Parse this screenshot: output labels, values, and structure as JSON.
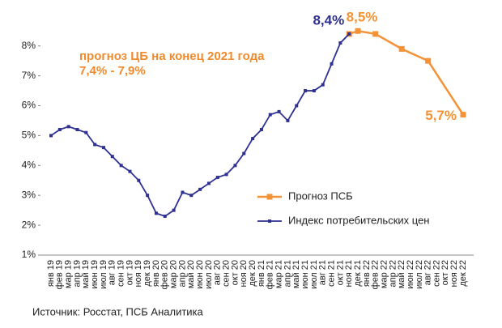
{
  "chart_data": {
    "type": "line",
    "categories": [
      "янв 19",
      "фев 19",
      "мар 19",
      "апр 19",
      "май 19",
      "июн 19",
      "июл 19",
      "авг 19",
      "сен 19",
      "окт 19",
      "ноя 19",
      "дек 19",
      "янв 20",
      "фев 20",
      "мар 20",
      "апр 20",
      "май 20",
      "июн 20",
      "июл 20",
      "авг 20",
      "сен 20",
      "окт 20",
      "ноя 20",
      "дек 20",
      "янв 21",
      "фев 21",
      "мар 21",
      "апр 21",
      "май 21",
      "июн 21",
      "июл 21",
      "авг 21",
      "сен 21",
      "окт 21",
      "ноя 21",
      "дек 21",
      "янв 22",
      "фев 22",
      "мар 22",
      "апр 22",
      "май 22",
      "июн 22",
      "июл 22",
      "авг 22",
      "сен 22",
      "окт 22",
      "ноя 22",
      "дек 22"
    ],
    "series": [
      {
        "name": "Прогноз ПСБ",
        "color": "#f39237",
        "marker": "square",
        "values": [
          null,
          null,
          null,
          null,
          null,
          null,
          null,
          null,
          null,
          null,
          null,
          null,
          null,
          null,
          null,
          null,
          null,
          null,
          null,
          null,
          null,
          null,
          null,
          null,
          null,
          null,
          null,
          null,
          null,
          null,
          null,
          null,
          null,
          null,
          8.4,
          8.5,
          null,
          8.4,
          null,
          null,
          7.9,
          null,
          null,
          7.5,
          null,
          null,
          null,
          5.7
        ],
        "value_labels": [
          null,
          null,
          null,
          null,
          null,
          null,
          null,
          null,
          null,
          null,
          null,
          null,
          null,
          null,
          null,
          null,
          null,
          null,
          null,
          null,
          null,
          null,
          null,
          null,
          null,
          null,
          null,
          null,
          null,
          null,
          null,
          null,
          null,
          null,
          null,
          "8,5%",
          null,
          null,
          null,
          null,
          null,
          null,
          null,
          null,
          null,
          null,
          null,
          "5,7%"
        ]
      },
      {
        "name": "Индекс потребительских цен",
        "color": "#2e3192",
        "marker": "square",
        "values": [
          5.0,
          5.2,
          5.3,
          5.2,
          5.1,
          4.7,
          4.6,
          4.3,
          4.0,
          3.8,
          3.5,
          3.0,
          2.4,
          2.3,
          2.5,
          3.1,
          3.0,
          3.2,
          3.4,
          3.6,
          3.7,
          4.0,
          4.4,
          4.9,
          5.2,
          5.7,
          5.8,
          5.5,
          6.0,
          6.5,
          6.5,
          6.7,
          7.4,
          8.1,
          8.4,
          null,
          null,
          null,
          null,
          null,
          null,
          null,
          null,
          null,
          null,
          null,
          null,
          null
        ],
        "value_labels": [
          null,
          null,
          null,
          null,
          null,
          null,
          null,
          null,
          null,
          null,
          null,
          null,
          null,
          null,
          null,
          null,
          null,
          null,
          null,
          null,
          null,
          null,
          null,
          null,
          null,
          null,
          null,
          null,
          null,
          null,
          null,
          null,
          null,
          null,
          "8,4%",
          null,
          null,
          null,
          null,
          null,
          null,
          null,
          null,
          null,
          null,
          null,
          null,
          null
        ]
      }
    ],
    "span_gaps": true,
    "ylim": [
      1,
      8.7
    ],
    "yticks": [
      {
        "value": 1,
        "label": "1%"
      },
      {
        "value": 2,
        "label": "2%"
      },
      {
        "value": 3,
        "label": "3%"
      },
      {
        "value": 4,
        "label": "4%"
      },
      {
        "value": 5,
        "label": "5%"
      },
      {
        "value": 6,
        "label": "6%"
      },
      {
        "value": 7,
        "label": "7%"
      },
      {
        "value": 8,
        "label": "8%"
      }
    ],
    "grid": false,
    "legend": "right",
    "annotations": [
      "прогноз  ЦБ на конец 2021 года",
      "7,4% - 7,9%"
    ],
    "source": "Источник: Росстат, ПСБ Аналитика"
  }
}
